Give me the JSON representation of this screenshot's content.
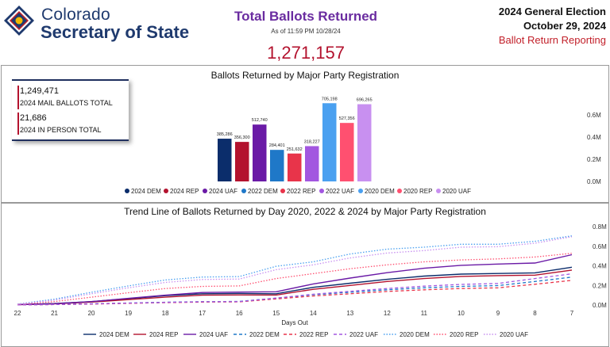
{
  "header": {
    "logo_line1": "Colorado",
    "logo_line2": "Secretary of State",
    "title": "Total Ballots Returned",
    "as_of": "As of 11:59 PM 10/28/24",
    "grand_total": "1,271,157",
    "election_name": "2024 General Election",
    "election_date": "October 29, 2024",
    "report_name": "Ballot Return Reporting"
  },
  "summary": {
    "mail_value": "1,249,471",
    "mail_label": "2024 MAIL BALLOTS TOTAL",
    "in_person_value": "21,686",
    "in_person_label": "2024 IN PERSON TOTAL"
  },
  "colors": {
    "brand_navy": "#1f3a6e",
    "title_purple": "#6a2ca0",
    "accent_red": "#b3122e"
  },
  "chart_data": [
    {
      "type": "bar",
      "title": "Ballots Returned by Major Party Registration",
      "categories": [
        "2024 DEM",
        "2024 REP",
        "2024 UAF",
        "2022 DEM",
        "2022 REP",
        "2022 UAF",
        "2020 DEM",
        "2020 REP",
        "2020 UAF"
      ],
      "values": [
        385286,
        356300,
        512740,
        284401,
        251632,
        318227,
        705198,
        527356,
        696265
      ],
      "data_labels": [
        "385,286",
        "356,300",
        "512,740",
        "284,401",
        "251,632",
        "318,227",
        "705,198",
        "527,356",
        "696,265"
      ],
      "colors": [
        "#0b2d6b",
        "#b3122e",
        "#6a1aa6",
        "#1f78c8",
        "#e8344a",
        "#a256e0",
        "#4aa0f0",
        "#ff5070",
        "#c890f0"
      ],
      "ylim": [
        0,
        800000
      ],
      "yticks": [
        0,
        200000,
        400000,
        600000
      ],
      "ytick_labels": [
        "0.0M",
        "0.2M",
        "0.4M",
        "0.6M"
      ],
      "legend_position": "bottom",
      "grid": false
    },
    {
      "type": "line",
      "title": "Trend Line of Ballots Returned by Day 2020, 2022 & 2024 by Major Party Registration",
      "xlabel": "Days Out",
      "x": [
        22,
        21,
        20,
        19,
        18,
        17,
        16,
        15,
        14,
        13,
        12,
        11,
        10,
        9,
        8,
        7
      ],
      "ylim": [
        0,
        800000
      ],
      "yticks": [
        0,
        200000,
        400000,
        600000,
        800000
      ],
      "ytick_labels": [
        "0.0M",
        "0.2M",
        "0.4M",
        "0.6M",
        "0.8M"
      ],
      "legend_position": "bottom",
      "grid": false,
      "series": [
        {
          "name": "2024 DEM",
          "color": "#0b2d6b",
          "dash": "solid",
          "values": [
            5000,
            15000,
            35000,
            65000,
            95000,
            115000,
            118000,
            115000,
            180000,
            222000,
            262000,
            295000,
            315000,
            322000,
            328000,
            385286
          ]
        },
        {
          "name": "2024 REP",
          "color": "#b3122e",
          "dash": "solid",
          "values": [
            4000,
            12000,
            30000,
            55000,
            80000,
            100000,
            103000,
            102000,
            160000,
            200000,
            240000,
            270000,
            292000,
            300000,
            305000,
            356300
          ]
        },
        {
          "name": "2024 UAF",
          "color": "#6a1aa6",
          "dash": "solid",
          "values": [
            4000,
            14000,
            35000,
            68000,
            100000,
            128000,
            132000,
            135000,
            215000,
            275000,
            330000,
            375000,
            405000,
            418000,
            428000,
            512740
          ]
        },
        {
          "name": "2022 DEM",
          "color": "#1f78c8",
          "dash": "dashed",
          "values": [
            2000,
            6000,
            12000,
            20000,
            28000,
            34000,
            36000,
            70000,
            105000,
            130000,
            155000,
            175000,
            190000,
            198000,
            240000,
            284401
          ]
        },
        {
          "name": "2022 REP",
          "color": "#e8344a",
          "dash": "dashed",
          "values": [
            2000,
            5000,
            10000,
            17000,
            24000,
            30000,
            32000,
            62000,
            92000,
            115000,
            138000,
            155000,
            168000,
            175000,
            212000,
            251632
          ]
        },
        {
          "name": "2022 UAF",
          "color": "#a256e0",
          "dash": "dashed",
          "values": [
            2000,
            5000,
            11000,
            19000,
            27000,
            33000,
            35000,
            70000,
            110000,
            140000,
            168000,
            192000,
            210000,
            220000,
            270000,
            318227
          ]
        },
        {
          "name": "2020 DEM",
          "color": "#4aa0f0",
          "dash": "dotted",
          "values": [
            10000,
            60000,
            130000,
            195000,
            255000,
            285000,
            290000,
            395000,
            440000,
            520000,
            570000,
            590000,
            620000,
            620000,
            650000,
            705198
          ]
        },
        {
          "name": "2020 REP",
          "color": "#ff5070",
          "dash": "dotted",
          "values": [
            6000,
            35000,
            80000,
            125000,
            168000,
            190000,
            195000,
            270000,
            320000,
            370000,
            410000,
            440000,
            460000,
            470000,
            490000,
            527356
          ]
        },
        {
          "name": "2020 UAF",
          "color": "#c890f0",
          "dash": "dotted",
          "values": [
            8000,
            50000,
            115000,
            175000,
            230000,
            260000,
            265000,
            360000,
            410000,
            480000,
            530000,
            555000,
            590000,
            595000,
            630000,
            696265
          ]
        }
      ]
    }
  ]
}
